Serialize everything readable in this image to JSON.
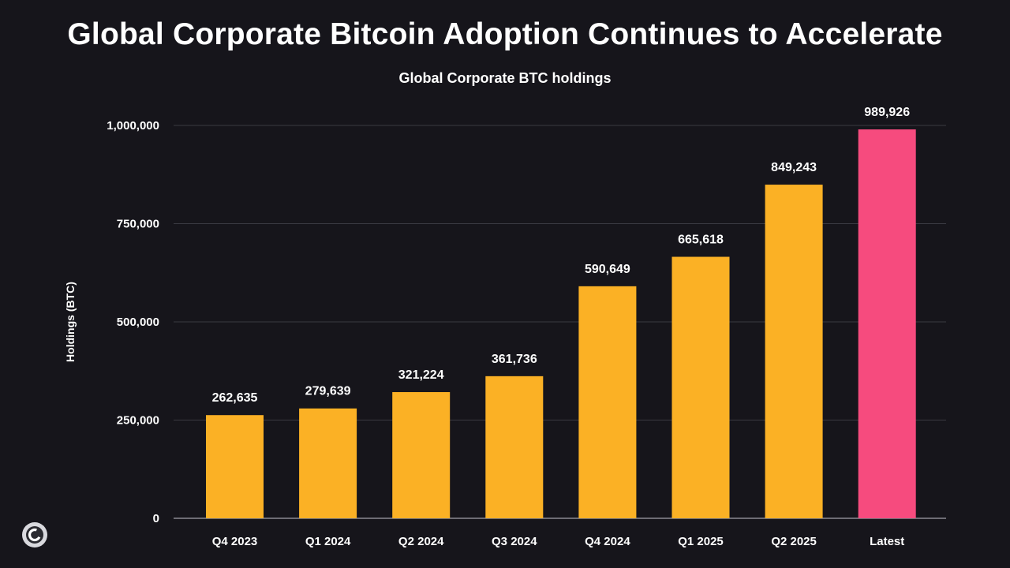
{
  "chart_data": {
    "type": "bar",
    "title": "Global Corporate Bitcoin Adoption Continues to Accelerate",
    "subtitle": "Global Corporate BTC holdings",
    "xlabel": "",
    "ylabel": "Holdings (BTC)",
    "ylim": [
      0,
      1000000
    ],
    "yticks": [
      0,
      250000,
      500000,
      750000,
      1000000
    ],
    "ytick_labels": [
      "0",
      "250,000",
      "500,000",
      "750,000",
      "1,000,000"
    ],
    "grid": true,
    "categories": [
      "Q4 2023",
      "Q1 2024",
      "Q2 2024",
      "Q3 2024",
      "Q4 2024",
      "Q1 2025",
      "Q2 2025",
      "Latest"
    ],
    "values": [
      262635,
      279639,
      321224,
      361736,
      590649,
      665618,
      849243,
      989926
    ],
    "value_labels": [
      "262,635",
      "279,639",
      "321,224",
      "361,736",
      "590,649",
      "665,618",
      "849,243",
      "989,926"
    ],
    "colors": {
      "default_bar": "#fbb125",
      "highlight_bar": "#f64b7e",
      "highlight_category": "Latest",
      "grid": "#3a3a42",
      "axis": "#8a8a92",
      "text": "#ffffff",
      "background": "#16151b"
    }
  },
  "brand": {
    "logo_icon": "coin-c-icon"
  }
}
